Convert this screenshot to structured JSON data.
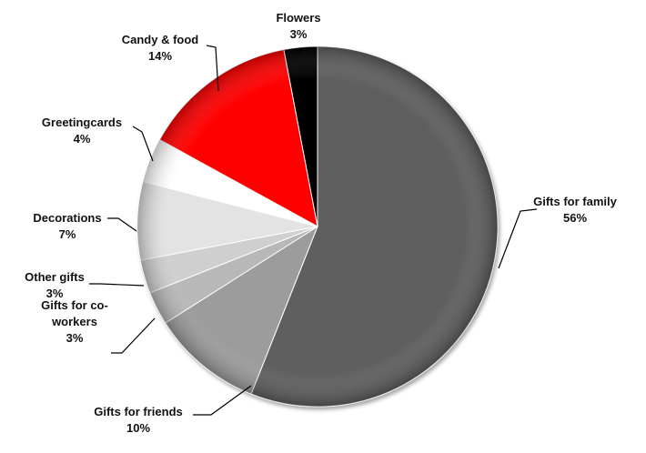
{
  "chart_data": {
    "type": "pie",
    "title": "",
    "start_angle_deg": 0,
    "direction": "clockwise",
    "slices": [
      {
        "name": "Gifts for family",
        "label_lines": [
          "Gifts for family"
        ],
        "value": 56,
        "value_label": "56%",
        "color": "#5f5f5f"
      },
      {
        "name": "Gifts for friends",
        "label_lines": [
          "Gifts for friends"
        ],
        "value": 10,
        "value_label": "10%",
        "color": "#9c9c9c"
      },
      {
        "name": "Gifts for co-workers",
        "label_lines": [
          "Gifts for co-",
          "workers"
        ],
        "value": 3,
        "value_label": "3%",
        "color": "#b8b8b8"
      },
      {
        "name": "Other gifts",
        "label_lines": [
          "Other gifts"
        ],
        "value": 3,
        "value_label": "3%",
        "color": "#cfcfcf"
      },
      {
        "name": "Decorations",
        "label_lines": [
          "Decorations"
        ],
        "value": 7,
        "value_label": "7%",
        "color": "#e3e3e3"
      },
      {
        "name": "Greetingcards",
        "label_lines": [
          "Greetingcards"
        ],
        "value": 4,
        "value_label": "4%",
        "color": "#ffffff"
      },
      {
        "name": "Candy & food",
        "label_lines": [
          "Candy & food"
        ],
        "value": 14,
        "value_label": "14%",
        "color": "#ff0000"
      },
      {
        "name": "Flowers",
        "label_lines": [
          "Flowers"
        ],
        "value": 3,
        "value_label": "3%",
        "color": "#050505"
      }
    ],
    "legend": "none",
    "labels": "outside-with-leader-lines"
  }
}
